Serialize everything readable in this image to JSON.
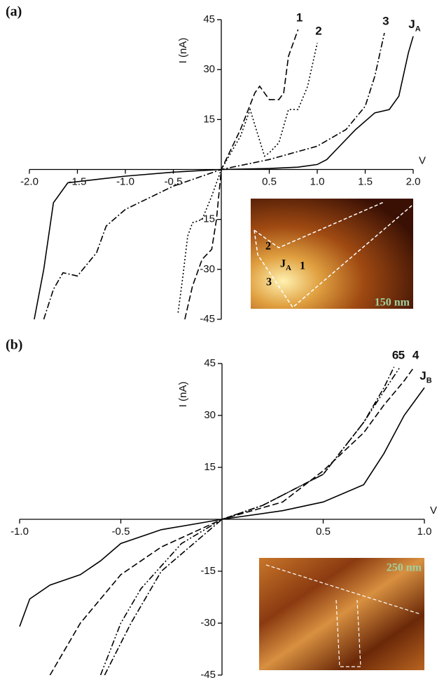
{
  "chart_data": [
    {
      "type": "line",
      "panel_label": "(a)",
      "x_label": "V",
      "y_label": "I (nA)",
      "xlim": [
        -2,
        2
      ],
      "ylim": [
        -45,
        45
      ],
      "xticks": [
        {
          "value": -2,
          "label": "-2.0"
        },
        -1.5,
        {
          "value": -1,
          "label": "-1.0"
        },
        -0.5,
        0.5,
        {
          "value": 1,
          "label": "1.0"
        },
        1.5,
        {
          "value": 2,
          "label": "2.0"
        }
      ],
      "yticks": [
        -45,
        -30,
        -15,
        15,
        30,
        45
      ],
      "series": [
        {
          "name": "1",
          "color": "#000000",
          "style": "dashed",
          "x": [
            -0.38,
            -0.3,
            -0.2,
            -0.1,
            -0.05,
            0,
            0.2,
            0.35,
            0.4,
            0.5,
            0.6,
            0.65,
            0.7,
            0.8
          ],
          "values": [
            -45,
            -35,
            -27,
            -24,
            -15,
            0,
            12,
            23,
            25,
            21,
            21,
            23,
            34,
            42
          ]
        },
        {
          "name": "2",
          "color": "#000000",
          "style": "dotted",
          "x": [
            -0.45,
            -0.4,
            -0.35,
            -0.3,
            -0.2,
            -0.1,
            0,
            0.2,
            0.3,
            0.45,
            0.5,
            0.6,
            0.7,
            0.8,
            0.9,
            1.0
          ],
          "values": [
            -43,
            -32,
            -20,
            -16,
            -15,
            -8,
            0,
            10,
            18,
            4,
            5,
            8,
            18,
            18,
            25,
            38
          ]
        },
        {
          "name": "3",
          "color": "#000000",
          "style": "dash-dot",
          "x": [
            -1.85,
            -1.75,
            -1.65,
            -1.5,
            -1.3,
            -1.2,
            -1.0,
            -0.5,
            0,
            0.5,
            1.0,
            1.3,
            1.5,
            1.6,
            1.7
          ],
          "values": [
            -45,
            -36,
            -31,
            -32,
            -25,
            -17,
            -12,
            -5,
            0,
            3,
            7,
            12,
            19,
            28,
            41
          ]
        },
        {
          "name": "J",
          "name_sub": "A",
          "color": "#000000",
          "style": "solid",
          "x": [
            -1.95,
            -1.85,
            -1.75,
            -1.6,
            -1.3,
            -1.0,
            -0.5,
            0,
            0.5,
            0.8,
            1.0,
            1.1,
            1.2,
            1.4,
            1.6,
            1.75,
            1.85,
            1.95,
            2.0
          ],
          "values": [
            -45,
            -30,
            -10,
            -4,
            -3,
            -2,
            -0.8,
            0,
            0.3,
            0.7,
            1.5,
            3,
            6,
            12,
            17,
            18,
            22,
            35,
            40
          ]
        }
      ],
      "inset": {
        "labels": [
          {
            "text": "2"
          },
          {
            "text": "J",
            "sub": "A"
          },
          {
            "text": "1"
          },
          {
            "text": "3"
          },
          {
            "text": "150 nm"
          }
        ]
      }
    },
    {
      "type": "line",
      "panel_label": "(b)",
      "x_label": "V",
      "y_label": "I (nA)",
      "xlim": [
        -1,
        1
      ],
      "ylim": [
        -45,
        45
      ],
      "xticks": [
        {
          "value": -1,
          "label": "-1.0"
        },
        -0.5,
        0.5,
        {
          "value": 1,
          "label": "1.0"
        }
      ],
      "yticks": [
        -45,
        -30,
        -15,
        15,
        30,
        45
      ],
      "series": [
        {
          "name": "4",
          "color": "#000000",
          "style": "dashed",
          "x": [
            -0.85,
            -0.7,
            -0.5,
            -0.3,
            0,
            0.3,
            0.5,
            0.7,
            0.8,
            0.9,
            0.95
          ],
          "values": [
            -45,
            -30,
            -16,
            -8,
            0,
            5,
            14,
            25,
            33,
            40,
            44
          ]
        },
        {
          "name": "5",
          "color": "#000000",
          "style": "dash-dot-dot",
          "x": [
            -0.6,
            -0.5,
            -0.4,
            -0.2,
            0,
            0.2,
            0.5,
            0.7,
            0.8,
            0.88
          ],
          "values": [
            -45,
            -30,
            -20,
            -7,
            0,
            4,
            13,
            28,
            37,
            44
          ]
        },
        {
          "name": "6",
          "color": "#000000",
          "style": "dash-dot",
          "x": [
            -0.58,
            -0.45,
            -0.3,
            0,
            0.2,
            0.5,
            0.7,
            0.8,
            0.85
          ],
          "values": [
            -45,
            -30,
            -15,
            0,
            4,
            13,
            28,
            38,
            44
          ]
        },
        {
          "name": "J",
          "name_sub": "B",
          "color": "#000000",
          "style": "solid",
          "x": [
            -1.0,
            -0.95,
            -0.85,
            -0.7,
            -0.6,
            -0.5,
            -0.3,
            0,
            0.3,
            0.5,
            0.7,
            0.8,
            0.9,
            1.0
          ],
          "values": [
            -31,
            -23,
            -19,
            -16,
            -12,
            -7,
            -3,
            0,
            2.5,
            5,
            10,
            19,
            30,
            38
          ]
        }
      ],
      "inset": {
        "labels": [
          {
            "text": "250 nm"
          }
        ]
      }
    }
  ]
}
